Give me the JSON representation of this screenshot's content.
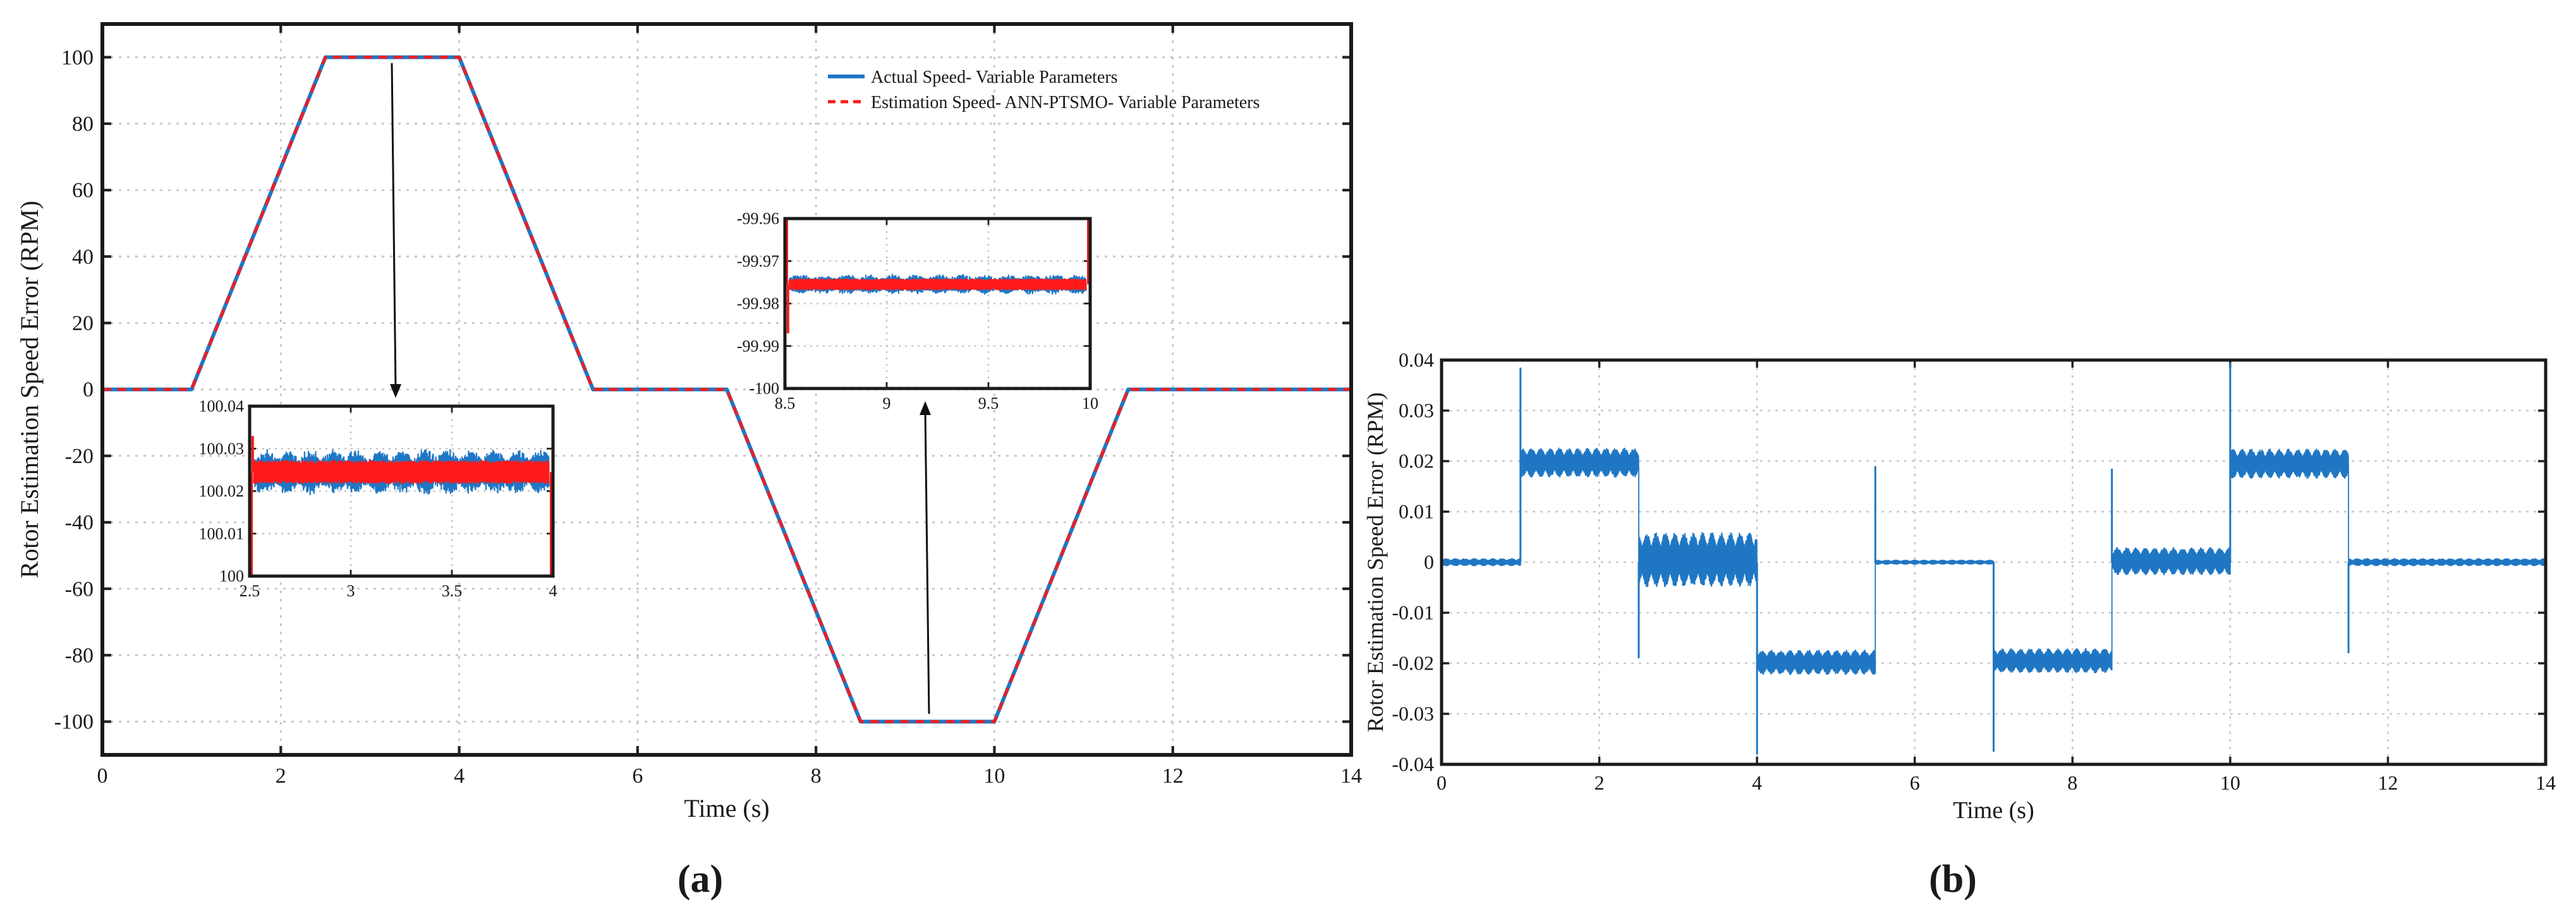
{
  "chart_data": [
    {
      "panel": "a",
      "type": "line",
      "xlabel": "Time (s)",
      "ylabel": "Rotor Estimation Speed Error (RPM)",
      "xlim": [
        0,
        14
      ],
      "ylim": [
        -110,
        110
      ],
      "xticks": [
        0,
        2,
        4,
        6,
        8,
        10,
        12,
        14
      ],
      "yticks": [
        -100,
        -80,
        -60,
        -40,
        -20,
        0,
        20,
        40,
        60,
        80,
        100
      ],
      "grid": true,
      "legend": "top-right",
      "series": [
        {
          "name": "Actual Speed- Variable Parameters",
          "color": "#1f77c4",
          "style": "solid",
          "x": [
            0,
            1,
            2.5,
            4,
            5.5,
            7,
            8.5,
            10,
            11.5,
            14
          ],
          "y": [
            0,
            0,
            100,
            100,
            0,
            0,
            -100,
            -100,
            0,
            0
          ]
        },
        {
          "name": "Estimation Speed- ANN-PTSMO- Variable Parameters",
          "color": "#ff1a1a",
          "style": "dashed",
          "x": [
            0,
            1,
            2.5,
            4,
            5.5,
            7,
            8.5,
            10,
            11.5,
            14
          ],
          "y": [
            0,
            0,
            100,
            100,
            0,
            0,
            -100,
            -100,
            0,
            0
          ]
        }
      ],
      "insets": [
        {
          "xlim": [
            2.5,
            4
          ],
          "ylim": [
            100,
            100.04
          ],
          "xticks": [
            2.5,
            3,
            3.5,
            4
          ],
          "xtick_labels": [
            "2.5",
            "3",
            "3.5",
            "4"
          ],
          "yticks": [
            100,
            100.01,
            100.02,
            100.03,
            100.04
          ],
          "ytick_labels": [
            "100",
            "100.01",
            "100.02",
            "100.03",
            "100.04"
          ],
          "level": 100.0245,
          "blue_band": 0.0045,
          "red_band": 0.0028,
          "spike_value": 100.033
        },
        {
          "xlim": [
            8.5,
            10
          ],
          "ylim": [
            -100,
            -99.96
          ],
          "xticks": [
            8.5,
            9,
            9.5,
            10
          ],
          "xtick_labels": [
            "8.5",
            "9",
            "9.5",
            "10"
          ],
          "yticks": [
            -100,
            -99.99,
            -99.98,
            -99.97,
            -99.96
          ],
          "ytick_labels": [
            "-100",
            "-99.99",
            "-99.98",
            "-99.97",
            "-99.96"
          ],
          "level": -99.9755,
          "blue_band": 0.002,
          "red_band": 0.0014,
          "spike_value": -99.987
        }
      ]
    },
    {
      "panel": "b",
      "type": "line",
      "xlabel": "Time (s)",
      "ylabel": "Rotor Estimation Speed Error (RPM)",
      "xlim": [
        0,
        14
      ],
      "ylim": [
        -0.04,
        0.04
      ],
      "xticks": [
        0,
        2,
        4,
        6,
        8,
        10,
        12,
        14
      ],
      "yticks": [
        -0.04,
        -0.03,
        -0.02,
        -0.01,
        0,
        0.01,
        0.02,
        0.03,
        0.04
      ],
      "ytick_labels": [
        "-0.04",
        "-0.03",
        "-0.02",
        "-0.01",
        "0",
        "0.01",
        "0.02",
        "0.03",
        "0.04"
      ],
      "grid": true,
      "series": [
        {
          "color": "#1f77c4",
          "segments": [
            {
              "x0": 0,
              "x1": 1,
              "level": 0,
              "noise": 0.0008
            },
            {
              "x0": 1,
              "x1": 2.5,
              "level": 0.0197,
              "noise": 0.003
            },
            {
              "x0": 2.5,
              "x1": 4,
              "level": 0.0005,
              "noise": 0.0055
            },
            {
              "x0": 4,
              "x1": 5.5,
              "level": -0.0198,
              "noise": 0.0025
            },
            {
              "x0": 5.5,
              "x1": 7,
              "level": 0,
              "noise": 0.0005
            },
            {
              "x0": 7,
              "x1": 8.5,
              "level": -0.0195,
              "noise": 0.0025
            },
            {
              "x0": 8.5,
              "x1": 10,
              "level": 0.0002,
              "noise": 0.0028
            },
            {
              "x0": 10,
              "x1": 11.5,
              "level": 0.0195,
              "noise": 0.003
            },
            {
              "x0": 11.5,
              "x1": 14,
              "level": 0,
              "noise": 0.0008
            }
          ],
          "spikes": [
            {
              "x": 1,
              "value": 0.0385
            },
            {
              "x": 2.5,
              "value": -0.019
            },
            {
              "x": 4,
              "value": -0.038
            },
            {
              "x": 5.5,
              "value": 0.019
            },
            {
              "x": 7,
              "value": -0.0375
            },
            {
              "x": 8.5,
              "value": 0.0185
            },
            {
              "x": 10,
              "value": 0.0395
            },
            {
              "x": 11.5,
              "value": -0.018
            }
          ]
        }
      ]
    }
  ],
  "captions": {
    "a": "(a)",
    "b": "(b)"
  }
}
